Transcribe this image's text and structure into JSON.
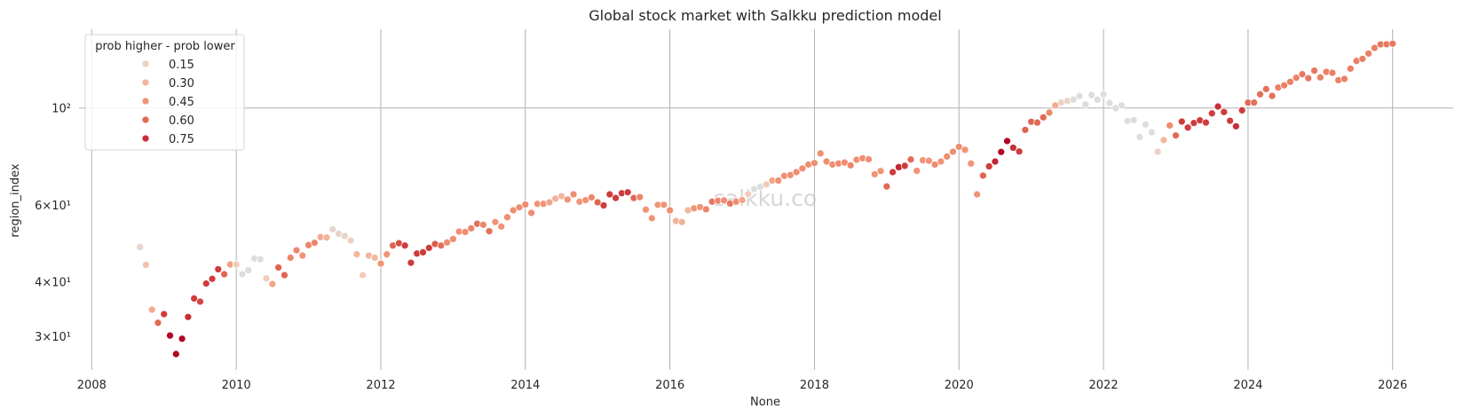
{
  "chart_data": {
    "type": "scatter",
    "title": "Global stock market with Salkku prediction model",
    "xlabel": "None",
    "ylabel": "region_index",
    "y_scale": "log",
    "xlim": [
      "2007-10-28",
      "2026-11-03"
    ],
    "ylim": [
      25.1,
      151.5
    ],
    "grid": true,
    "x_ticks": [
      "2008",
      "2010",
      "2012",
      "2014",
      "2016",
      "2018",
      "2020",
      "2022",
      "2024",
      "2026"
    ],
    "y_ticks": [
      {
        "value": 100,
        "label": "10²",
        "major": true
      },
      {
        "value": 60,
        "label": "6×10¹",
        "major": false
      },
      {
        "value": 40,
        "label": "4×10¹",
        "major": false
      },
      {
        "value": 30,
        "label": "3×10¹",
        "major": false
      }
    ],
    "watermark": "salkku.co",
    "hue_colormap": "coolwarm (positive half)",
    "hue_max": 0.85,
    "legend": {
      "title": "prob higher - prob lower",
      "placement": "upper-left",
      "entries": [
        {
          "value": 0.15,
          "label": "0.15"
        },
        {
          "value": 0.3,
          "label": "0.30"
        },
        {
          "value": 0.45,
          "label": "0.45"
        },
        {
          "value": 0.6,
          "label": "0.60"
        },
        {
          "value": 0.75,
          "label": "0.75"
        }
      ]
    },
    "columns": [
      "date",
      "region_index",
      "prob higher - prob lower"
    ],
    "points": [
      [
        "2008-09",
        48.0,
        0.08
      ],
      [
        "2008-10",
        43.7,
        0.25
      ],
      [
        "2008-11",
        34.5,
        0.35
      ],
      [
        "2008-12",
        32.2,
        0.6
      ],
      [
        "2009-01",
        33.7,
        0.72
      ],
      [
        "2009-02",
        30.1,
        0.85
      ],
      [
        "2009-03",
        27.3,
        0.85
      ],
      [
        "2009-04",
        29.6,
        0.85
      ],
      [
        "2009-05",
        33.2,
        0.75
      ],
      [
        "2009-06",
        36.6,
        0.72
      ],
      [
        "2009-07",
        36.0,
        0.7
      ],
      [
        "2009-08",
        39.6,
        0.72
      ],
      [
        "2009-09",
        40.6,
        0.72
      ],
      [
        "2009-10",
        42.7,
        0.72
      ],
      [
        "2009-11",
        41.6,
        0.62
      ],
      [
        "2009-12",
        43.8,
        0.4
      ],
      [
        "2010-01",
        43.8,
        0.2
      ],
      [
        "2010-02",
        41.6,
        0
      ],
      [
        "2010-03",
        42.5,
        0
      ],
      [
        "2010-04",
        45.2,
        0
      ],
      [
        "2010-05",
        45.0,
        0
      ],
      [
        "2010-06",
        40.7,
        0.2
      ],
      [
        "2010-07",
        39.5,
        0.38
      ],
      [
        "2010-08",
        43.1,
        0.62
      ],
      [
        "2010-09",
        41.4,
        0.62
      ],
      [
        "2010-10",
        45.4,
        0.5
      ],
      [
        "2010-11",
        47.2,
        0.5
      ],
      [
        "2010-12",
        45.9,
        0.45
      ],
      [
        "2011-01",
        48.5,
        0.5
      ],
      [
        "2011-02",
        49.1,
        0.5
      ],
      [
        "2011-03",
        50.6,
        0.35
      ],
      [
        "2011-04",
        50.5,
        0.32
      ],
      [
        "2011-05",
        52.7,
        0.08
      ],
      [
        "2011-06",
        51.5,
        0.12
      ],
      [
        "2011-07",
        50.9,
        0.12
      ],
      [
        "2011-08",
        49.7,
        0.15
      ],
      [
        "2011-09",
        46.2,
        0.3
      ],
      [
        "2011-10",
        41.4,
        0.2
      ],
      [
        "2011-11",
        45.9,
        0.3
      ],
      [
        "2011-12",
        45.4,
        0.3
      ],
      [
        "2012-01",
        44.0,
        0.45
      ],
      [
        "2012-02",
        46.2,
        0.45
      ],
      [
        "2012-03",
        48.4,
        0.62
      ],
      [
        "2012-04",
        49.0,
        0.68
      ],
      [
        "2012-05",
        48.4,
        0.72
      ],
      [
        "2012-06",
        44.2,
        0.72
      ],
      [
        "2012-07",
        46.4,
        0.72
      ],
      [
        "2012-08",
        46.7,
        0.72
      ],
      [
        "2012-09",
        47.8,
        0.72
      ],
      [
        "2012-10",
        48.8,
        0.65
      ],
      [
        "2012-11",
        48.4,
        0.58
      ],
      [
        "2012-12",
        49.2,
        0.47
      ],
      [
        "2013-01",
        50.1,
        0.47
      ],
      [
        "2013-02",
        52.1,
        0.47
      ],
      [
        "2013-03",
        52.0,
        0.47
      ],
      [
        "2013-04",
        53.0,
        0.5
      ],
      [
        "2013-05",
        54.3,
        0.58
      ],
      [
        "2013-06",
        54.0,
        0.5
      ],
      [
        "2013-07",
        52.2,
        0.58
      ],
      [
        "2013-08",
        54.8,
        0.45
      ],
      [
        "2013-09",
        53.5,
        0.45
      ],
      [
        "2013-10",
        56.2,
        0.47
      ],
      [
        "2013-11",
        58.3,
        0.47
      ],
      [
        "2013-12",
        59.2,
        0.47
      ],
      [
        "2014-01",
        60.1,
        0.47
      ],
      [
        "2014-02",
        57.5,
        0.47
      ],
      [
        "2014-03",
        60.3,
        0.45
      ],
      [
        "2014-04",
        60.3,
        0.45
      ],
      [
        "2014-05",
        60.8,
        0.38
      ],
      [
        "2014-06",
        62.0,
        0.32
      ],
      [
        "2014-07",
        62.8,
        0.3
      ],
      [
        "2014-08",
        61.7,
        0.45
      ],
      [
        "2014-09",
        63.4,
        0.47
      ],
      [
        "2014-10",
        61.0,
        0.45
      ],
      [
        "2014-11",
        61.5,
        0.45
      ],
      [
        "2014-12",
        62.4,
        0.5
      ],
      [
        "2015-01",
        60.8,
        0.62
      ],
      [
        "2015-02",
        59.8,
        0.72
      ],
      [
        "2015-03",
        63.4,
        0.72
      ],
      [
        "2015-04",
        62.2,
        0.72
      ],
      [
        "2015-05",
        63.8,
        0.72
      ],
      [
        "2015-06",
        64.1,
        0.72
      ],
      [
        "2015-07",
        62.2,
        0.62
      ],
      [
        "2015-08",
        62.5,
        0.5
      ],
      [
        "2015-09",
        58.5,
        0.45
      ],
      [
        "2015-10",
        55.9,
        0.45
      ],
      [
        "2015-11",
        60.0,
        0.45
      ],
      [
        "2015-12",
        60.0,
        0.45
      ],
      [
        "2016-01",
        58.3,
        0.47
      ],
      [
        "2016-02",
        55.1,
        0.32
      ],
      [
        "2016-03",
        54.8,
        0.32
      ],
      [
        "2016-04",
        58.3,
        0.3
      ],
      [
        "2016-05",
        58.9,
        0.45
      ],
      [
        "2016-06",
        59.3,
        0.45
      ],
      [
        "2016-07",
        58.6,
        0.5
      ],
      [
        "2016-08",
        61.0,
        0.55
      ],
      [
        "2016-09",
        61.3,
        0.5
      ],
      [
        "2016-10",
        61.4,
        0.47
      ],
      [
        "2016-11",
        60.4,
        0.55
      ],
      [
        "2016-12",
        61.0,
        0.47
      ],
      [
        "2017-01",
        61.5,
        0.38
      ],
      [
        "2017-02",
        63.5,
        0.2
      ],
      [
        "2017-03",
        65.2,
        0
      ],
      [
        "2017-04",
        66.0,
        0
      ],
      [
        "2017-05",
        66.8,
        0.2
      ],
      [
        "2017-06",
        68.2,
        0.38
      ],
      [
        "2017-07",
        68.2,
        0.45
      ],
      [
        "2017-08",
        69.9,
        0.47
      ],
      [
        "2017-09",
        70.2,
        0.47
      ],
      [
        "2017-10",
        71.3,
        0.47
      ],
      [
        "2017-11",
        72.7,
        0.47
      ],
      [
        "2017-12",
        74.2,
        0.47
      ],
      [
        "2018-01",
        74.8,
        0.47
      ],
      [
        "2018-02",
        78.7,
        0.47
      ],
      [
        "2018-03",
        75.4,
        0.47
      ],
      [
        "2018-04",
        74.2,
        0.47
      ],
      [
        "2018-05",
        74.6,
        0.47
      ],
      [
        "2018-06",
        75.0,
        0.47
      ],
      [
        "2018-07",
        73.9,
        0.5
      ],
      [
        "2018-08",
        76.1,
        0.47
      ],
      [
        "2018-09",
        76.7,
        0.47
      ],
      [
        "2018-10",
        76.3,
        0.47
      ],
      [
        "2018-11",
        70.5,
        0.45
      ],
      [
        "2018-12",
        71.7,
        0.45
      ],
      [
        "2019-01",
        66.1,
        0.6
      ],
      [
        "2019-02",
        71.3,
        0.72
      ],
      [
        "2019-03",
        73.2,
        0.78
      ],
      [
        "2019-04",
        73.7,
        0.72
      ],
      [
        "2019-05",
        76.2,
        0.6
      ],
      [
        "2019-06",
        71.8,
        0.45
      ],
      [
        "2019-07",
        75.9,
        0.45
      ],
      [
        "2019-08",
        75.7,
        0.45
      ],
      [
        "2019-09",
        74.2,
        0.47
      ],
      [
        "2019-10",
        75.4,
        0.45
      ],
      [
        "2019-11",
        77.4,
        0.47
      ],
      [
        "2019-12",
        79.4,
        0.47
      ],
      [
        "2020-01",
        81.5,
        0.47
      ],
      [
        "2020-02",
        80.2,
        0.45
      ],
      [
        "2020-03",
        74.6,
        0.45
      ],
      [
        "2020-04",
        63.4,
        0.45
      ],
      [
        "2020-05",
        70.0,
        0.62
      ],
      [
        "2020-06",
        73.5,
        0.72
      ],
      [
        "2020-07",
        75.4,
        0.78
      ],
      [
        "2020-08",
        79.3,
        0.85
      ],
      [
        "2020-09",
        84.0,
        0.85
      ],
      [
        "2020-10",
        81.1,
        0.75
      ],
      [
        "2020-11",
        79.5,
        0.72
      ],
      [
        "2020-12",
        89.1,
        0.62
      ],
      [
        "2021-01",
        93.0,
        0.62
      ],
      [
        "2021-02",
        92.6,
        0.6
      ],
      [
        "2021-03",
        95.2,
        0.6
      ],
      [
        "2021-04",
        97.6,
        0.5
      ],
      [
        "2021-05",
        101.4,
        0.35
      ],
      [
        "2021-06",
        103.0,
        0.15
      ],
      [
        "2021-07",
        103.8,
        0.12
      ],
      [
        "2021-08",
        104.5,
        0
      ],
      [
        "2021-09",
        106.6,
        0
      ],
      [
        "2021-10",
        101.9,
        0
      ],
      [
        "2021-11",
        107.1,
        0
      ],
      [
        "2021-12",
        104.5,
        0
      ],
      [
        "2022-01",
        107.5,
        0
      ],
      [
        "2022-02",
        102.7,
        0
      ],
      [
        "2022-03",
        99.9,
        0
      ],
      [
        "2022-04",
        101.4,
        0
      ],
      [
        "2022-05",
        93.4,
        0
      ],
      [
        "2022-06",
        93.8,
        0
      ],
      [
        "2022-07",
        85.8,
        0
      ],
      [
        "2022-08",
        91.7,
        0
      ],
      [
        "2022-09",
        88.0,
        0
      ],
      [
        "2022-10",
        79.4,
        0.15
      ],
      [
        "2022-11",
        84.4,
        0.3
      ],
      [
        "2022-12",
        91.2,
        0.47
      ],
      [
        "2023-01",
        86.5,
        0.6
      ],
      [
        "2023-02",
        93.1,
        0.72
      ],
      [
        "2023-03",
        90.2,
        0.72
      ],
      [
        "2023-04",
        92.4,
        0.72
      ],
      [
        "2023-05",
        93.7,
        0.72
      ],
      [
        "2023-06",
        92.6,
        0.72
      ],
      [
        "2023-07",
        97.2,
        0.72
      ],
      [
        "2023-08",
        100.8,
        0.75
      ],
      [
        "2023-09",
        97.9,
        0.72
      ],
      [
        "2023-10",
        93.5,
        0.72
      ],
      [
        "2023-11",
        90.8,
        0.75
      ],
      [
        "2023-12",
        98.8,
        0.72
      ],
      [
        "2024-01",
        102.9,
        0.6
      ],
      [
        "2024-02",
        102.9,
        0.58
      ],
      [
        "2024-03",
        107.5,
        0.58
      ],
      [
        "2024-04",
        110.5,
        0.58
      ],
      [
        "2024-05",
        106.6,
        0.58
      ],
      [
        "2024-06",
        111.4,
        0.52
      ],
      [
        "2024-07",
        112.7,
        0.52
      ],
      [
        "2024-08",
        114.8,
        0.52
      ],
      [
        "2024-09",
        117.3,
        0.52
      ],
      [
        "2024-10",
        119.5,
        0.55
      ],
      [
        "2024-11",
        117.0,
        0.55
      ],
      [
        "2024-12",
        121.8,
        0.55
      ],
      [
        "2025-01",
        117.5,
        0.52
      ],
      [
        "2025-02",
        121.0,
        0.52
      ],
      [
        "2025-03",
        120.4,
        0.52
      ],
      [
        "2025-04",
        115.8,
        0.52
      ],
      [
        "2025-05",
        116.6,
        0.52
      ],
      [
        "2025-06",
        123.1,
        0.52
      ],
      [
        "2025-07",
        128.2,
        0.52
      ],
      [
        "2025-08",
        129.6,
        0.52
      ],
      [
        "2025-09",
        133.3,
        0.52
      ],
      [
        "2025-10",
        137.3,
        0.52
      ],
      [
        "2025-11",
        139.9,
        0.55
      ],
      [
        "2025-12",
        140.0,
        0.55
      ],
      [
        "2026-01",
        140.4,
        0.55
      ]
    ]
  }
}
